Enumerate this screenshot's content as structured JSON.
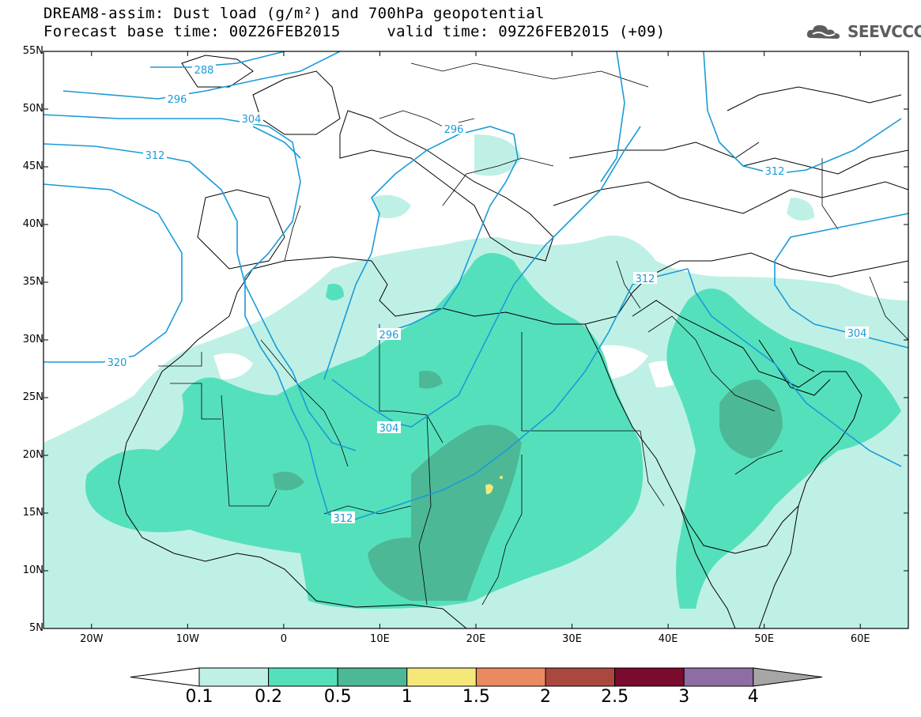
{
  "header": {
    "line1": "DREAM8-assim: Dust load (g/m²) and 700hPa geopotential",
    "line2": "Forecast base time: 00Z26FEB2015     valid time: 09Z26FEB2015 (+09)"
  },
  "logo": {
    "text": "SEEVCCC",
    "icon": "cloud-icon",
    "color": "#5d5d5d"
  },
  "axes": {
    "lat_labels": [
      "55N",
      "50N",
      "45N",
      "40N",
      "35N",
      "30N",
      "25N",
      "20N",
      "15N",
      "10N",
      "5N"
    ],
    "lat_values": [
      55,
      50,
      45,
      40,
      35,
      30,
      25,
      20,
      15,
      10,
      5
    ],
    "lon_labels": [
      "20W",
      "10W",
      "0",
      "10E",
      "20E",
      "30E",
      "40E",
      "50E",
      "60E"
    ],
    "lon_values": [
      -20,
      -10,
      0,
      10,
      20,
      30,
      40,
      50,
      60
    ],
    "lon_range": [
      -25,
      65
    ],
    "lat_range": [
      5,
      55
    ]
  },
  "contours": {
    "label_color": "#1a9bd8",
    "labels": [
      "288",
      "296",
      "304",
      "312",
      "296",
      "296",
      "304",
      "312",
      "312",
      "304",
      "312",
      "320"
    ]
  },
  "colorbar": {
    "labels": [
      "0.1",
      "0.2",
      "0.5",
      "1",
      "1.5",
      "2",
      "2.5",
      "3",
      "4"
    ],
    "colors": [
      "#ffffff",
      "#bff0e6",
      "#55e0bc",
      "#4db896",
      "#f5e878",
      "#ea8a5e",
      "#a9483e",
      "#7a0a2e",
      "#8e6ca4",
      "#a6a6a6"
    ]
  }
}
